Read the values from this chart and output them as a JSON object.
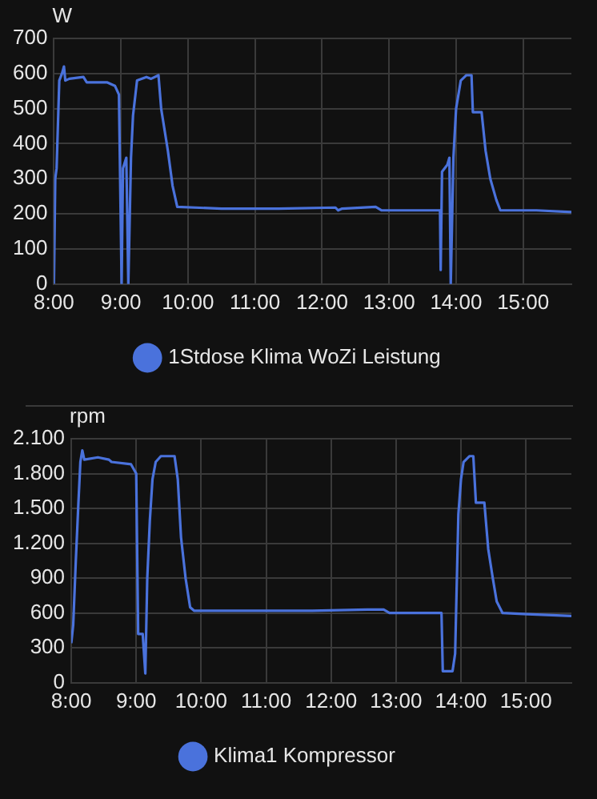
{
  "chart_data": [
    {
      "type": "line",
      "ylabel": "W",
      "xlim": [
        8,
        15.72
      ],
      "xticks": [
        {
          "value": 8,
          "label": "8:00"
        },
        {
          "value": 9,
          "label": "9:00"
        },
        {
          "value": 10,
          "label": "10:00"
        },
        {
          "value": 11,
          "label": "11:00"
        },
        {
          "value": 12,
          "label": "12:00"
        },
        {
          "value": 13,
          "label": "13:00"
        },
        {
          "value": 14,
          "label": "14:00"
        },
        {
          "value": 15,
          "label": "15:00"
        }
      ],
      "ylim": [
        0,
        700
      ],
      "yticks": [
        0,
        100,
        200,
        300,
        400,
        500,
        600,
        700
      ],
      "grid": true,
      "legend": "bottom",
      "marker": "none",
      "line_style": "solid",
      "series": [
        {
          "name": "1Stdose Klima WoZi Leistung",
          "color": "#4a72dc",
          "x": [
            8,
            8.02,
            8.04,
            8.08,
            8.12,
            8.15,
            8.17,
            8.23,
            8.44,
            8.49,
            8.79,
            8.91,
            8.97,
            9.01,
            9.03,
            9.08,
            9.11,
            9.15,
            9.18,
            9.24,
            9.38,
            9.45,
            9.56,
            9.6,
            9.7,
            9.77,
            9.84,
            10.5,
            11.35,
            12.2,
            12.24,
            12.3,
            12.8,
            12.89,
            13.76,
            13.77,
            13.79,
            13.87,
            13.9,
            13.92,
            13.96,
            14.0,
            14.07,
            14.15,
            14.23,
            14.25,
            14.38,
            14.44,
            14.51,
            14.6,
            14.66,
            15.2,
            15.72
          ],
          "values": [
            0,
            300,
            330,
            580,
            600,
            620,
            580,
            585,
            590,
            575,
            575,
            565,
            540,
            0,
            330,
            360,
            0,
            360,
            480,
            580,
            590,
            585,
            595,
            500,
            380,
            280,
            220,
            215,
            215,
            218,
            210,
            215,
            220,
            210,
            210,
            40,
            320,
            340,
            360,
            0,
            360,
            500,
            580,
            595,
            595,
            490,
            490,
            380,
            300,
            240,
            210,
            210,
            205
          ]
        }
      ]
    },
    {
      "type": "line",
      "ylabel": "rpm",
      "xlim": [
        8,
        15.7
      ],
      "xticks": [
        {
          "value": 8,
          "label": "8:00"
        },
        {
          "value": 9,
          "label": "9:00"
        },
        {
          "value": 10,
          "label": "10:00"
        },
        {
          "value": 11,
          "label": "11:00"
        },
        {
          "value": 12,
          "label": "12:00"
        },
        {
          "value": 13,
          "label": "13:00"
        },
        {
          "value": 14,
          "label": "14:00"
        },
        {
          "value": 15,
          "label": "15:00"
        }
      ],
      "ylim": [
        0,
        2100
      ],
      "yticks": [
        0,
        300,
        600,
        900,
        {
          "value": 1200,
          "label": "1.200"
        },
        {
          "value": 1500,
          "label": "1.500"
        },
        {
          "value": 1800,
          "label": "1.800"
        },
        {
          "value": 2100,
          "label": "2.100"
        }
      ],
      "grid": true,
      "legend": "bottom",
      "marker": "none",
      "line_style": "solid",
      "series": [
        {
          "name": "Klima1 Kompressor",
          "color": "#4a72dc",
          "x": [
            8,
            8.03,
            8.07,
            8.11,
            8.14,
            8.17,
            8.2,
            8.41,
            8.58,
            8.62,
            8.92,
            9.0,
            9.03,
            9.1,
            9.14,
            9.17,
            9.21,
            9.25,
            9.3,
            9.38,
            9.59,
            9.64,
            9.69,
            9.76,
            9.83,
            9.89,
            10.86,
            11.71,
            12.56,
            12.81,
            12.9,
            13.7,
            13.72,
            13.87,
            13.91,
            13.96,
            14.0,
            14.04,
            14.13,
            14.19,
            14.23,
            14.36,
            14.42,
            14.49,
            14.55,
            14.64,
            15.02,
            15.7
          ],
          "values": [
            340,
            500,
            1050,
            1550,
            1900,
            2000,
            1920,
            1940,
            1920,
            1900,
            1880,
            1800,
            420,
            420,
            80,
            900,
            1400,
            1750,
            1900,
            1950,
            1950,
            1750,
            1250,
            900,
            650,
            620,
            620,
            620,
            630,
            630,
            600,
            600,
            100,
            100,
            250,
            1450,
            1750,
            1900,
            1950,
            1950,
            1550,
            1550,
            1150,
            900,
            700,
            600,
            590,
            575
          ]
        }
      ]
    }
  ]
}
